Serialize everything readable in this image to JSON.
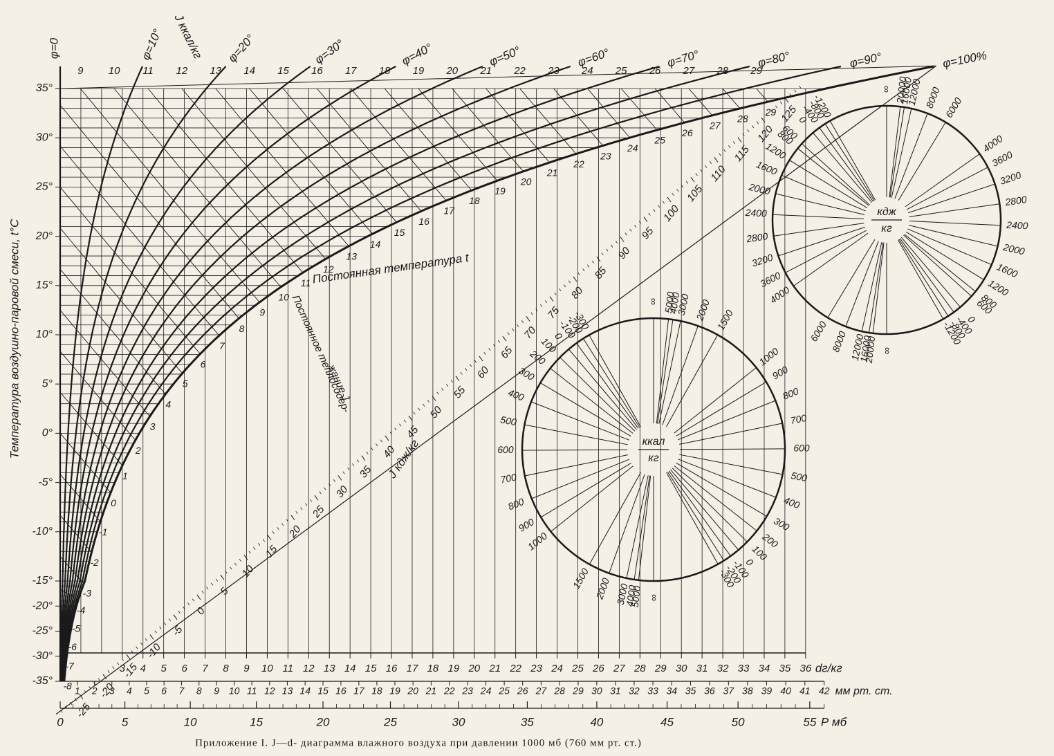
{
  "caption": "Приложение I. J—d- диаграмма влажного воздуха при давлении 1000 мб (760 мм рт. ст.)",
  "y_axis": {
    "label": "Температура воздушно-паровой смеси, t°C",
    "ticks": [
      {
        "value": 35,
        "label": "35°"
      },
      {
        "value": 30,
        "label": "30°"
      },
      {
        "value": 25,
        "label": "25°"
      },
      {
        "value": 20,
        "label": "20°"
      },
      {
        "value": 15,
        "label": "15°"
      },
      {
        "value": 10,
        "label": "10°"
      },
      {
        "value": 5,
        "label": "5°"
      },
      {
        "value": 0,
        "label": "0°"
      },
      {
        "value": -5,
        "label": "-5°"
      },
      {
        "value": -10,
        "label": "-10°"
      },
      {
        "value": -15,
        "label": "-15°"
      },
      {
        "value": -20,
        "label": "-20°"
      },
      {
        "value": -25,
        "label": "-25°"
      },
      {
        "value": -30,
        "label": "-30°"
      },
      {
        "value": -35,
        "label": "-35°"
      }
    ]
  },
  "d_axis": {
    "label": "dг/кг",
    "ticks": [
      3,
      4,
      5,
      6,
      7,
      8,
      9,
      10,
      11,
      12,
      13,
      14,
      15,
      16,
      17,
      18,
      19,
      20,
      21,
      22,
      23,
      24,
      25,
      26,
      27,
      28,
      29,
      30,
      31,
      32,
      33,
      34,
      35,
      36
    ]
  },
  "mm_axis": {
    "label": "мм рт. ст.",
    "ticks": [
      1,
      2,
      3,
      4,
      5,
      6,
      7,
      8,
      9,
      10,
      11,
      12,
      13,
      14,
      15,
      16,
      17,
      18,
      19,
      20,
      21,
      22,
      23,
      24,
      25,
      26,
      27,
      28,
      29,
      30,
      31,
      32,
      33,
      34,
      35,
      36,
      37,
      38,
      39,
      40,
      41,
      42
    ]
  },
  "p_axis": {
    "label": "Р мб",
    "ticks": [
      0,
      5,
      10,
      15,
      20,
      25,
      30,
      35,
      40,
      45,
      50,
      55
    ]
  },
  "phi_curves": [
    {
      "value": 0,
      "label": "φ=0"
    },
    {
      "value": 10,
      "label": "φ=10°"
    },
    {
      "value": 20,
      "label": "φ=20°"
    },
    {
      "value": 30,
      "label": "φ=30°"
    },
    {
      "value": 40,
      "label": "φ=40°"
    },
    {
      "value": 50,
      "label": "φ=50°"
    },
    {
      "value": 60,
      "label": "φ=60°"
    },
    {
      "value": 70,
      "label": "φ=70°"
    },
    {
      "value": 80,
      "label": "φ=80°"
    },
    {
      "value": 90,
      "label": "φ=90°"
    },
    {
      "value": 100,
      "label": "φ=100%"
    }
  ],
  "enthalpy_kcal": {
    "label": "J ккал/кг",
    "lines": [
      -8,
      -7,
      -6,
      -5,
      -4,
      -3,
      -2,
      -1,
      0,
      1,
      2,
      3,
      4,
      5,
      6,
      7,
      8,
      9,
      10,
      11,
      12,
      13,
      14,
      15,
      16,
      17,
      18,
      19,
      20,
      21,
      22,
      23,
      24,
      25,
      26,
      27,
      28,
      29
    ]
  },
  "enthalpy_kj": {
    "label": "J кдж/кг",
    "ticks": [
      -25,
      -20,
      -15,
      -10,
      -5,
      0,
      5,
      10,
      15,
      20,
      25,
      30,
      35,
      40,
      45,
      50,
      55,
      60,
      65,
      70,
      75,
      80,
      85,
      90,
      95,
      100,
      105,
      110,
      115,
      120,
      125
    ]
  },
  "annotations": {
    "constant_temperature": "Постоянная температура t",
    "constant_enthalpy": [
      "Постоянное теплосодер-",
      "жание J"
    ]
  },
  "kcal_circle": {
    "unit_top": "ккал",
    "unit_bottom": "кг",
    "infinity": "∞",
    "values": [
      -300,
      -200,
      -100,
      0,
      100,
      200,
      300,
      400,
      500,
      600,
      700,
      800,
      900,
      1000,
      1500,
      2000,
      3000,
      4000,
      5000
    ]
  },
  "kj_circle": {
    "unit_top": "кдж",
    "unit_bottom": "кг",
    "infinity": "∞",
    "values": [
      -1200,
      -800,
      -400,
      0,
      600,
      800,
      1200,
      1600,
      2000,
      2400,
      2800,
      3200,
      3600,
      4000,
      6000,
      8000,
      12000,
      16000,
      20000
    ]
  }
}
